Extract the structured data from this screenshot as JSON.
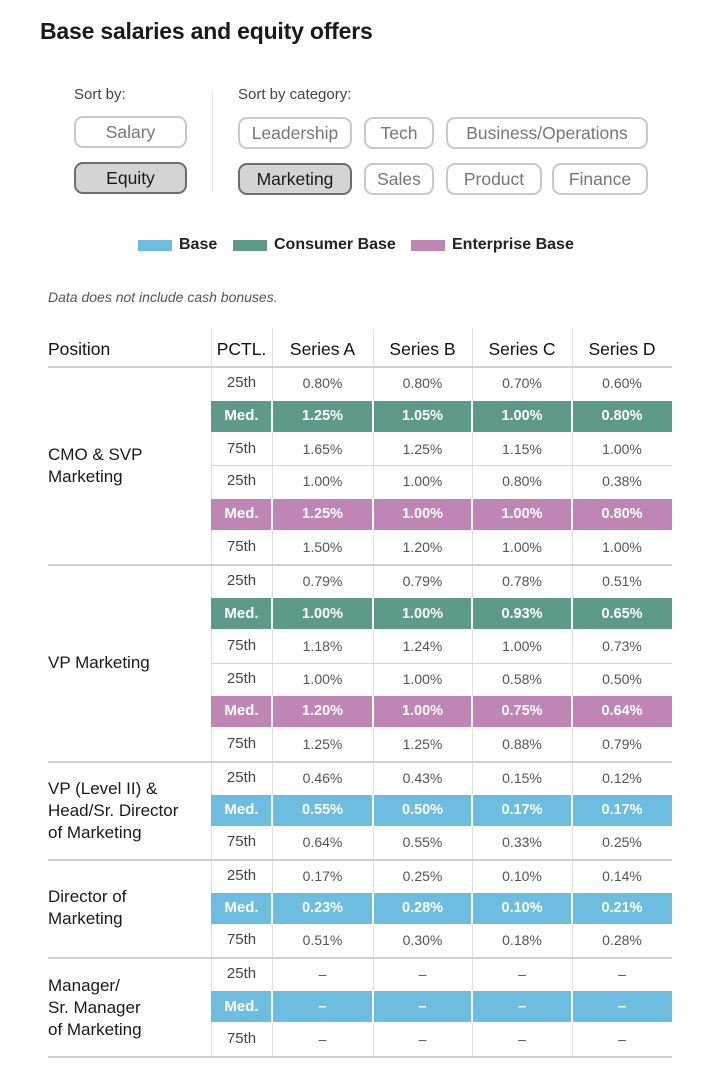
{
  "title": "Base salaries and equity offers",
  "sort": {
    "label": "Sort by:",
    "options": [
      "Salary",
      "Equity"
    ],
    "selected": "Equity"
  },
  "category": {
    "label": "Sort by category:",
    "options": [
      "Leadership",
      "Tech",
      "Business/Operations",
      "Marketing",
      "Sales",
      "Product",
      "Finance"
    ],
    "selected": "Marketing"
  },
  "legend": [
    {
      "label": "Base",
      "color": "#6cbde0"
    },
    {
      "label": "Consumer Base",
      "color": "#5e9a8a"
    },
    {
      "label": "Enterprise Base",
      "color": "#bf85b4"
    }
  ],
  "note": "Data does not include cash bonuses.",
  "chart_data": {
    "type": "table",
    "headers": [
      "Position",
      "PCTL.",
      "Series A",
      "Series B",
      "Series C",
      "Series D"
    ],
    "groups": [
      {
        "position": "CMO & SVP\nMarketing",
        "rows": [
          {
            "pctl": "25th",
            "values": [
              "0.80%",
              "0.80%",
              "0.70%",
              "0.60%"
            ],
            "highlight": null
          },
          {
            "pctl": "Med.",
            "values": [
              "1.25%",
              "1.05%",
              "1.00%",
              "0.80%"
            ],
            "highlight": "Consumer Base"
          },
          {
            "pctl": "75th",
            "values": [
              "1.65%",
              "1.25%",
              "1.15%",
              "1.00%"
            ],
            "highlight": null
          },
          {
            "pctl": "25th",
            "values": [
              "1.00%",
              "1.00%",
              "0.80%",
              "0.38%"
            ],
            "highlight": null
          },
          {
            "pctl": "Med.",
            "values": [
              "1.25%",
              "1.00%",
              "1.00%",
              "0.80%"
            ],
            "highlight": "Enterprise Base"
          },
          {
            "pctl": "75th",
            "values": [
              "1.50%",
              "1.20%",
              "1.00%",
              "1.00%"
            ],
            "highlight": null
          }
        ]
      },
      {
        "position": "VP Marketing",
        "rows": [
          {
            "pctl": "25th",
            "values": [
              "0.79%",
              "0.79%",
              "0.78%",
              "0.51%"
            ],
            "highlight": null
          },
          {
            "pctl": "Med.",
            "values": [
              "1.00%",
              "1.00%",
              "0.93%",
              "0.65%"
            ],
            "highlight": "Consumer Base"
          },
          {
            "pctl": "75th",
            "values": [
              "1.18%",
              "1.24%",
              "1.00%",
              "0.73%"
            ],
            "highlight": null
          },
          {
            "pctl": "25th",
            "values": [
              "1.00%",
              "1.00%",
              "0.58%",
              "0.50%"
            ],
            "highlight": null
          },
          {
            "pctl": "Med.",
            "values": [
              "1.20%",
              "1.00%",
              "0.75%",
              "0.64%"
            ],
            "highlight": "Enterprise Base"
          },
          {
            "pctl": "75th",
            "values": [
              "1.25%",
              "1.25%",
              "0.88%",
              "0.79%"
            ],
            "highlight": null
          }
        ]
      },
      {
        "position": "VP (Level II) &\nHead/Sr. Director\nof Marketing",
        "rows": [
          {
            "pctl": "25th",
            "values": [
              "0.46%",
              "0.43%",
              "0.15%",
              "0.12%"
            ],
            "highlight": null
          },
          {
            "pctl": "Med.",
            "values": [
              "0.55%",
              "0.50%",
              "0.17%",
              "0.17%"
            ],
            "highlight": "Base"
          },
          {
            "pctl": "75th",
            "values": [
              "0.64%",
              "0.55%",
              "0.33%",
              "0.25%"
            ],
            "highlight": null
          }
        ]
      },
      {
        "position": "Director of\nMarketing",
        "rows": [
          {
            "pctl": "25th",
            "values": [
              "0.17%",
              "0.25%",
              "0.10%",
              "0.14%"
            ],
            "highlight": null
          },
          {
            "pctl": "Med.",
            "values": [
              "0.23%",
              "0.28%",
              "0.10%",
              "0.21%"
            ],
            "highlight": "Base"
          },
          {
            "pctl": "75th",
            "values": [
              "0.51%",
              "0.30%",
              "0.18%",
              "0.28%"
            ],
            "highlight": null
          }
        ]
      },
      {
        "position": "Manager/\nSr. Manager\nof Marketing",
        "rows": [
          {
            "pctl": "25th",
            "values": [
              "–",
              "–",
              "–",
              "–"
            ],
            "highlight": null
          },
          {
            "pctl": "Med.",
            "values": [
              "–",
              "–",
              "–",
              "–"
            ],
            "highlight": "Base"
          },
          {
            "pctl": "75th",
            "values": [
              "–",
              "–",
              "–",
              "–"
            ],
            "highlight": null
          }
        ]
      }
    ]
  }
}
